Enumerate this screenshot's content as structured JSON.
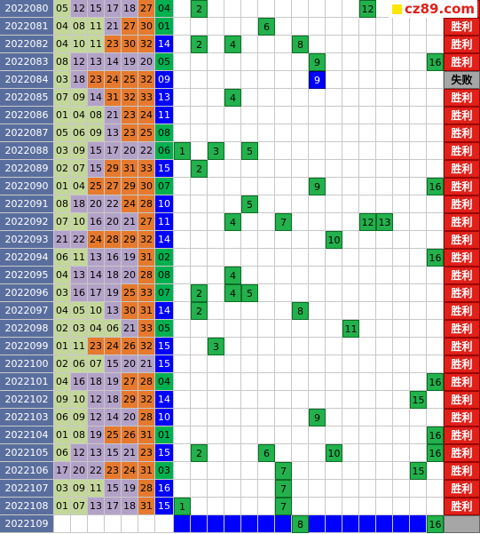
{
  "logo": "cz89.com",
  "rows": [
    {
      "issue": "2022080",
      "reds": [
        "05",
        "12",
        "15",
        "17",
        "18",
        "27"
      ],
      "blue": "04",
      "picks": [
        2,
        12
      ],
      "result": "胜利"
    },
    {
      "issue": "2022081",
      "reds": [
        "04",
        "08",
        "11",
        "21",
        "27",
        "30"
      ],
      "blue": "01",
      "picks": [
        6
      ],
      "result": "胜利"
    },
    {
      "issue": "2022082",
      "reds": [
        "04",
        "10",
        "11",
        "23",
        "30",
        "32"
      ],
      "blue": "14",
      "picks": [
        2,
        4,
        8
      ],
      "result": "胜利"
    },
    {
      "issue": "2022083",
      "reds": [
        "08",
        "12",
        "13",
        "14",
        "19",
        "20"
      ],
      "blue": "05",
      "picks": [
        9,
        16
      ],
      "result": "胜利"
    },
    {
      "issue": "2022084",
      "reds": [
        "03",
        "18",
        "23",
        "24",
        "25",
        "32"
      ],
      "blue": "09",
      "picks": [
        9
      ],
      "result": "失败"
    },
    {
      "issue": "2022085",
      "reds": [
        "07",
        "09",
        "14",
        "31",
        "32",
        "33"
      ],
      "blue": "13",
      "picks": [
        4
      ],
      "result": "胜利"
    },
    {
      "issue": "2022086",
      "reds": [
        "01",
        "04",
        "08",
        "21",
        "23",
        "24"
      ],
      "blue": "11",
      "picks": [],
      "result": "胜利"
    },
    {
      "issue": "2022087",
      "reds": [
        "05",
        "06",
        "09",
        "13",
        "23",
        "25"
      ],
      "blue": "08",
      "picks": [],
      "result": "胜利"
    },
    {
      "issue": "2022088",
      "reds": [
        "03",
        "09",
        "15",
        "17",
        "20",
        "22"
      ],
      "blue": "06",
      "picks": [
        1,
        3,
        5
      ],
      "result": "胜利"
    },
    {
      "issue": "2022089",
      "reds": [
        "02",
        "07",
        "15",
        "29",
        "31",
        "33"
      ],
      "blue": "15",
      "picks": [
        2
      ],
      "result": "胜利"
    },
    {
      "issue": "2022090",
      "reds": [
        "01",
        "04",
        "25",
        "27",
        "29",
        "30"
      ],
      "blue": "07",
      "picks": [
        9,
        16
      ],
      "result": "胜利"
    },
    {
      "issue": "2022091",
      "reds": [
        "08",
        "18",
        "20",
        "22",
        "24",
        "28"
      ],
      "blue": "10",
      "picks": [
        5
      ],
      "result": "胜利"
    },
    {
      "issue": "2022092",
      "reds": [
        "07",
        "10",
        "16",
        "20",
        "21",
        "27"
      ],
      "blue": "11",
      "picks": [
        4,
        7,
        12,
        13
      ],
      "result": "胜利"
    },
    {
      "issue": "2022093",
      "reds": [
        "21",
        "22",
        "24",
        "28",
        "29",
        "32"
      ],
      "blue": "14",
      "picks": [
        10
      ],
      "result": "胜利"
    },
    {
      "issue": "2022094",
      "reds": [
        "06",
        "11",
        "13",
        "16",
        "19",
        "31"
      ],
      "blue": "02",
      "picks": [
        16
      ],
      "result": "胜利"
    },
    {
      "issue": "2022095",
      "reds": [
        "04",
        "13",
        "14",
        "18",
        "20",
        "28"
      ],
      "blue": "08",
      "picks": [
        4
      ],
      "result": "胜利"
    },
    {
      "issue": "2022096",
      "reds": [
        "03",
        "16",
        "17",
        "19",
        "25",
        "33"
      ],
      "blue": "07",
      "picks": [
        2,
        4,
        5
      ],
      "result": "胜利"
    },
    {
      "issue": "2022097",
      "reds": [
        "04",
        "05",
        "10",
        "13",
        "30",
        "31"
      ],
      "blue": "14",
      "picks": [
        2,
        8
      ],
      "result": "胜利"
    },
    {
      "issue": "2022098",
      "reds": [
        "02",
        "03",
        "04",
        "06",
        "21",
        "33"
      ],
      "blue": "05",
      "picks": [
        11
      ],
      "result": "胜利"
    },
    {
      "issue": "2022099",
      "reds": [
        "01",
        "11",
        "23",
        "24",
        "26",
        "32"
      ],
      "blue": "15",
      "picks": [
        3
      ],
      "result": "胜利"
    },
    {
      "issue": "2022100",
      "reds": [
        "02",
        "06",
        "07",
        "15",
        "20",
        "21"
      ],
      "blue": "15",
      "picks": [],
      "result": "胜利"
    },
    {
      "issue": "2022101",
      "reds": [
        "04",
        "16",
        "18",
        "19",
        "27",
        "28"
      ],
      "blue": "04",
      "picks": [
        16
      ],
      "result": "胜利"
    },
    {
      "issue": "2022102",
      "reds": [
        "09",
        "10",
        "12",
        "18",
        "29",
        "32"
      ],
      "blue": "14",
      "picks": [
        15
      ],
      "result": "胜利"
    },
    {
      "issue": "2022103",
      "reds": [
        "06",
        "09",
        "12",
        "14",
        "20",
        "28"
      ],
      "blue": "10",
      "picks": [
        9
      ],
      "result": "胜利"
    },
    {
      "issue": "2022104",
      "reds": [
        "01",
        "08",
        "19",
        "25",
        "26",
        "31"
      ],
      "blue": "01",
      "picks": [
        16
      ],
      "result": "胜利"
    },
    {
      "issue": "2022105",
      "reds": [
        "06",
        "12",
        "13",
        "15",
        "21",
        "23"
      ],
      "blue": "15",
      "picks": [
        2,
        6,
        10,
        16
      ],
      "result": "胜利"
    },
    {
      "issue": "2022106",
      "reds": [
        "17",
        "20",
        "22",
        "23",
        "24",
        "31"
      ],
      "blue": "03",
      "picks": [
        7,
        15
      ],
      "result": "胜利"
    },
    {
      "issue": "2022107",
      "reds": [
        "03",
        "09",
        "11",
        "15",
        "19",
        "28"
      ],
      "blue": "16",
      "picks": [
        7
      ],
      "result": "胜利"
    },
    {
      "issue": "2022108",
      "reds": [
        "01",
        "07",
        "13",
        "17",
        "18",
        "31"
      ],
      "blue": "15",
      "picks": [
        1,
        7
      ],
      "result": "胜利"
    },
    {
      "issue": "2022109",
      "reds": [],
      "blue": null,
      "picks": [
        8,
        16
      ],
      "result": null
    }
  ]
}
